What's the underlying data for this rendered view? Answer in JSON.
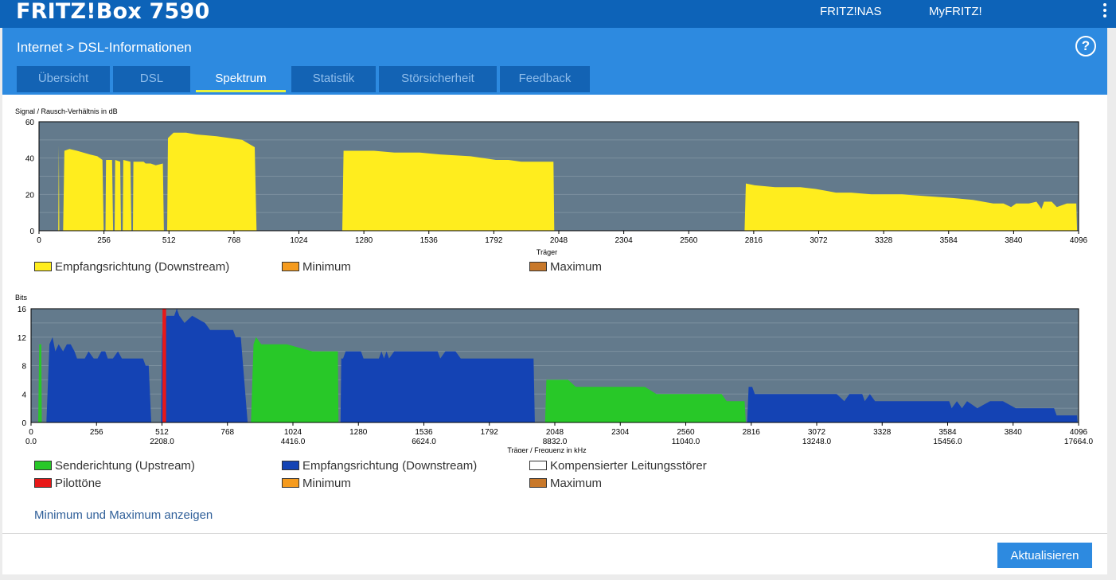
{
  "topbar": {
    "brand": "FRITZ!Box 7590",
    "links": [
      "FRITZ!NAS",
      "MyFRITZ!"
    ]
  },
  "breadcrumb": {
    "section": "Internet",
    "separator": ">",
    "page": "DSL-Informationen"
  },
  "tabs": [
    {
      "label": "Übersicht",
      "active": false
    },
    {
      "label": "DSL",
      "active": false
    },
    {
      "label": "Spektrum",
      "active": true
    },
    {
      "label": "Statistik",
      "active": false
    },
    {
      "label": "Störsicherheit",
      "active": false
    },
    {
      "label": "Feedback",
      "active": false
    }
  ],
  "icons": {
    "menu": "kebab-menu-icon",
    "help": "help-icon"
  },
  "colors": {
    "topbar": "#0d63b8",
    "band": "#2d8ae0",
    "tab": "#1363b4",
    "tab_active_underline": "#e9f23c",
    "plot_bg": "#637a8c",
    "downstream_snr": "#ffed1e",
    "upstream": "#28c828",
    "downstream_bits": "#1443b4",
    "pilot": "#e81818",
    "minimum": "#f59b1e",
    "maximum": "#c8782a"
  },
  "chart_data": [
    {
      "type": "area",
      "ylabel": "Signal / Rausch-Verhältnis in dB",
      "xlabel": "Träger",
      "xlim": [
        0,
        4096
      ],
      "ylim": [
        0,
        60
      ],
      "yticks": [
        0,
        20,
        40,
        60
      ],
      "xticks": [
        0,
        256,
        512,
        768,
        1024,
        1280,
        1536,
        1792,
        2048,
        2304,
        2560,
        2816,
        3072,
        3328,
        3584,
        3840,
        4096
      ],
      "grid": true,
      "series": [
        {
          "name": "Empfangsrichtung (Downstream)",
          "color": "#ffed1e",
          "points": [
            [
              76,
              0
            ],
            [
              78,
              47
            ],
            [
              80,
              0
            ],
            [
              95,
              0
            ],
            [
              100,
              44
            ],
            [
              120,
              45
            ],
            [
              150,
              44
            ],
            [
              200,
              42
            ],
            [
              230,
              41
            ],
            [
              250,
              39
            ],
            [
              255,
              0
            ],
            [
              262,
              0
            ],
            [
              264,
              39
            ],
            [
              288,
              39
            ],
            [
              292,
              0
            ],
            [
              298,
              0
            ],
            [
              300,
              39
            ],
            [
              320,
              38
            ],
            [
              323,
              0
            ],
            [
              330,
              0
            ],
            [
              332,
              39
            ],
            [
              360,
              38
            ],
            [
              364,
              0
            ],
            [
              370,
              0
            ],
            [
              372,
              38
            ],
            [
              412,
              38
            ],
            [
              420,
              37
            ],
            [
              440,
              37
            ],
            [
              460,
              36
            ],
            [
              488,
              37
            ],
            [
              492,
              0
            ],
            [
              505,
              0
            ],
            [
              508,
              51
            ],
            [
              530,
              54
            ],
            [
              580,
              54
            ],
            [
              620,
              53
            ],
            [
              700,
              52
            ],
            [
              800,
              50
            ],
            [
              850,
              46
            ],
            [
              857,
              0
            ],
            [
              1195,
              0
            ],
            [
              1200,
              44
            ],
            [
              1320,
              44
            ],
            [
              1400,
              43
            ],
            [
              1500,
              43
            ],
            [
              1580,
              42
            ],
            [
              1700,
              41
            ],
            [
              1800,
              39
            ],
            [
              1850,
              39
            ],
            [
              1900,
              38
            ],
            [
              2000,
              38
            ],
            [
              2027,
              38
            ],
            [
              2030,
              0
            ],
            [
              2780,
              0
            ],
            [
              2785,
              26
            ],
            [
              2820,
              25
            ],
            [
              2900,
              24
            ],
            [
              3000,
              24
            ],
            [
              3060,
              23
            ],
            [
              3100,
              22
            ],
            [
              3140,
              21
            ],
            [
              3200,
              21
            ],
            [
              3280,
              20
            ],
            [
              3400,
              20
            ],
            [
              3500,
              19
            ],
            [
              3600,
              18
            ],
            [
              3680,
              17
            ],
            [
              3760,
              15
            ],
            [
              3800,
              15
            ],
            [
              3830,
              13
            ],
            [
              3850,
              15
            ],
            [
              3900,
              15
            ],
            [
              3930,
              16
            ],
            [
              3950,
              12
            ],
            [
              3960,
              16
            ],
            [
              3990,
              16
            ],
            [
              4010,
              13
            ],
            [
              4030,
              14
            ],
            [
              4050,
              15
            ],
            [
              4080,
              15
            ],
            [
              4087,
              15
            ],
            [
              4090,
              0
            ]
          ]
        }
      ],
      "legend": [
        {
          "label": "Empfangsrichtung (Downstream)",
          "color": "#ffed1e"
        },
        {
          "label": "Minimum",
          "color": "#f59b1e"
        },
        {
          "label": "Maximum",
          "color": "#c8782a"
        }
      ]
    },
    {
      "type": "area",
      "ylabel": "Bits",
      "xlabel": "Träger / Frequenz in kHz",
      "xlim": [
        0,
        4096
      ],
      "ylim": [
        0,
        16
      ],
      "yticks": [
        0,
        4,
        8,
        12,
        16
      ],
      "xticks": [
        0,
        256,
        512,
        768,
        1024,
        1280,
        1536,
        1792,
        2048,
        2304,
        2560,
        2816,
        3072,
        3328,
        3584,
        3840,
        4096
      ],
      "xticks_khz": [
        {
          "x": 0,
          "label": "0.0"
        },
        {
          "x": 512,
          "label": "2208.0"
        },
        {
          "x": 1024,
          "label": "4416.0"
        },
        {
          "x": 1536,
          "label": "6624.0"
        },
        {
          "x": 2048,
          "label": "8832.0"
        },
        {
          "x": 2560,
          "label": "11040.0"
        },
        {
          "x": 3072,
          "label": "13248.0"
        },
        {
          "x": 3584,
          "label": "15456.0"
        },
        {
          "x": 4096,
          "label": "17664.0"
        }
      ],
      "grid": true,
      "series": [
        {
          "name": "Senderichtung (Upstream)",
          "color": "#28c828",
          "segments": [
            [
              [
                28,
                0
              ],
              [
                32,
                11
              ],
              [
                40,
                11
              ],
              [
                42,
                0
              ]
            ],
            [
              [
                860,
                0
              ],
              [
                870,
                11
              ],
              [
                880,
                12
              ],
              [
                900,
                11
              ],
              [
                1000,
                11
              ],
              [
                1100,
                10
              ],
              [
                1200,
                10
              ],
              [
                1202,
                0
              ]
            ],
            [
              [
                2010,
                0
              ],
              [
                2015,
                6
              ],
              [
                2100,
                6
              ],
              [
                2130,
                5
              ],
              [
                2200,
                5
              ],
              [
                2400,
                5
              ],
              [
                2445,
                4
              ],
              [
                2560,
                4
              ],
              [
                2700,
                4
              ],
              [
                2720,
                3
              ],
              [
                2790,
                3
              ],
              [
                2795,
                0
              ]
            ]
          ]
        },
        {
          "name": "Empfangsrichtung (Downstream)",
          "color": "#1443b4",
          "segments": [
            [
              [
                60,
                0
              ],
              [
                72,
                11
              ],
              [
                84,
                12
              ],
              [
                95,
                10
              ],
              [
                108,
                11
              ],
              [
                125,
                10
              ],
              [
                140,
                11
              ],
              [
                155,
                11
              ],
              [
                170,
                10
              ],
              [
                180,
                9
              ],
              [
                210,
                9
              ],
              [
                225,
                10
              ],
              [
                245,
                9
              ],
              [
                260,
                9
              ],
              [
                275,
                10
              ],
              [
                290,
                10
              ],
              [
                300,
                9
              ],
              [
                320,
                9
              ],
              [
                340,
                10
              ],
              [
                355,
                9
              ],
              [
                400,
                9
              ],
              [
                438,
                9
              ],
              [
                448,
                8
              ],
              [
                460,
                8
              ],
              [
                470,
                0
              ]
            ],
            [
              [
                508,
                0
              ],
              [
                512,
                12
              ],
              [
                515,
                13
              ],
              [
                530,
                15
              ],
              [
                560,
                15
              ],
              [
                570,
                16
              ],
              [
                580,
                15
              ],
              [
                600,
                14
              ],
              [
                630,
                15
              ],
              [
                680,
                14
              ],
              [
                700,
                13
              ],
              [
                750,
                13
              ],
              [
                790,
                13
              ],
              [
                800,
                12
              ],
              [
                820,
                12
              ],
              [
                847,
                0
              ]
            ],
            [
              [
                1210,
                0
              ],
              [
                1213,
                9
              ],
              [
                1220,
                9
              ],
              [
                1230,
                10
              ],
              [
                1290,
                10
              ],
              [
                1300,
                9
              ],
              [
                1360,
                9
              ],
              [
                1370,
                10
              ],
              [
                1380,
                9
              ],
              [
                1390,
                10
              ],
              [
                1400,
                9
              ],
              [
                1420,
                10
              ],
              [
                1500,
                10
              ],
              [
                1590,
                10
              ],
              [
                1600,
                9
              ],
              [
                1620,
                10
              ],
              [
                1660,
                10
              ],
              [
                1680,
                9
              ],
              [
                1700,
                9
              ],
              [
                1740,
                9
              ],
              [
                1790,
                9
              ],
              [
                1800,
                9
              ],
              [
                1900,
                9
              ],
              [
                1965,
                9
              ],
              [
                1970,
                0
              ]
            ],
            [
              [
                2800,
                0
              ],
              [
                2806,
                5
              ],
              [
                2820,
                5
              ],
              [
                2830,
                4
              ],
              [
                2880,
                4
              ],
              [
                2940,
                4
              ],
              [
                3000,
                4
              ],
              [
                3100,
                4
              ],
              [
                3150,
                4
              ],
              [
                3180,
                3
              ],
              [
                3200,
                4
              ],
              [
                3250,
                4
              ],
              [
                3260,
                3
              ],
              [
                3280,
                4
              ],
              [
                3300,
                3
              ],
              [
                3500,
                3
              ],
              [
                3590,
                3
              ],
              [
                3600,
                2
              ],
              [
                3620,
                3
              ],
              [
                3640,
                2
              ],
              [
                3660,
                3
              ],
              [
                3700,
                2
              ],
              [
                3750,
                3
              ],
              [
                3800,
                3
              ],
              [
                3850,
                2
              ],
              [
                3900,
                2
              ],
              [
                4000,
                2
              ],
              [
                4010,
                1
              ],
              [
                4090,
                1
              ],
              [
                4092,
                0
              ]
            ]
          ]
        },
        {
          "name": "Pilottöne",
          "color": "#e81818",
          "bar": {
            "x0": 514,
            "x1": 528,
            "value": 16
          }
        }
      ],
      "legend": [
        {
          "label": "Senderichtung (Upstream)",
          "color": "#28c828"
        },
        {
          "label": "Empfangsrichtung (Downstream)",
          "color": "#1443b4"
        },
        {
          "label": "Kompensierter Leitungsstörer",
          "color": "#ffffff"
        },
        {
          "label": "Pilottöne",
          "color": "#e81818"
        },
        {
          "label": "Minimum",
          "color": "#f59b1e"
        },
        {
          "label": "Maximum",
          "color": "#c8782a"
        }
      ]
    }
  ],
  "links": {
    "minmax": "Minimum und Maximum anzeigen"
  },
  "actions": {
    "refresh": "Aktualisieren"
  }
}
